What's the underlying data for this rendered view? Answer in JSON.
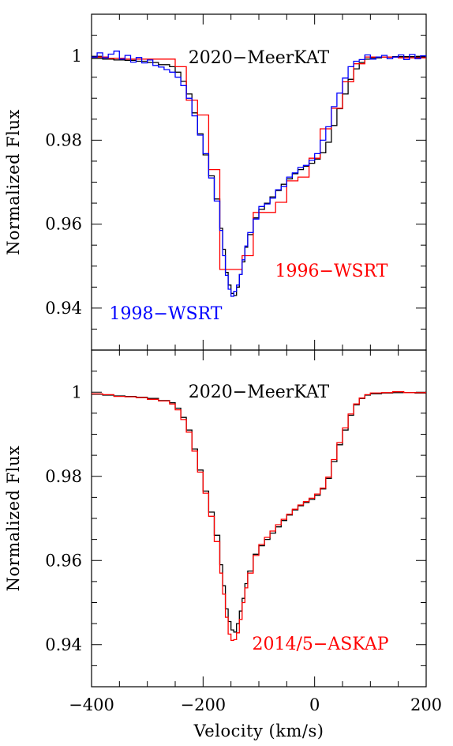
{
  "chart_data": [
    {
      "type": "line",
      "style": "step",
      "ylabel": "Normalized Flux",
      "xlabel": "",
      "xlim": [
        -400,
        200
      ],
      "ylim": [
        0.93,
        1.01
      ],
      "yticks": [
        "1",
        "0.98",
        "0.96",
        "0.94"
      ],
      "xticks": [],
      "annotations": [
        {
          "text": "2020−MeerKAT",
          "color": "#000000"
        },
        {
          "text": "1996−WSRT",
          "color": "#ff0000"
        },
        {
          "text": "1998−WSRT",
          "color": "#0000ff"
        }
      ],
      "series": [
        {
          "name": "2020−MeerKAT",
          "color": "#000000",
          "x": [
            -400,
            -380,
            -360,
            -340,
            -320,
            -300,
            -280,
            -260,
            -250,
            -240,
            -230,
            -220,
            -210,
            -200,
            -190,
            -180,
            -170,
            -165,
            -160,
            -155,
            -150,
            -145,
            -140,
            -135,
            -130,
            -125,
            -120,
            -110,
            -100,
            -90,
            -80,
            -70,
            -60,
            -50,
            -40,
            -30,
            -20,
            -10,
            0,
            10,
            20,
            30,
            40,
            50,
            60,
            70,
            80,
            90,
            100,
            120,
            140,
            160,
            180,
            200
          ],
          "y": [
            0.9995,
            0.9993,
            0.9991,
            0.999,
            0.9988,
            0.9985,
            0.998,
            0.9975,
            0.9962,
            0.994,
            0.991,
            0.9865,
            0.9815,
            0.9765,
            0.9715,
            0.966,
            0.959,
            0.954,
            0.9485,
            0.9455,
            0.9435,
            0.943,
            0.945,
            0.948,
            0.951,
            0.9545,
            0.9575,
            0.9615,
            0.9635,
            0.965,
            0.9665,
            0.968,
            0.9695,
            0.9708,
            0.972,
            0.973,
            0.9738,
            0.9745,
            0.9755,
            0.977,
            0.9795,
            0.9835,
            0.9875,
            0.991,
            0.9945,
            0.997,
            0.9985,
            0.9993,
            0.9996,
            0.9998,
            0.9999,
            0.9999,
            0.9998,
            0.9998
          ]
        },
        {
          "name": "1996−WSRT",
          "color": "#ff0000",
          "x": [
            -400,
            -370,
            -340,
            -310,
            -280,
            -250,
            -230,
            -210,
            -190,
            -170,
            -150,
            -130,
            -110,
            -90,
            -70,
            -50,
            -30,
            -10,
            10,
            30,
            50,
            70,
            90,
            110,
            130,
            150,
            170,
            200
          ],
          "y": [
            0.9998,
            0.9995,
            0.9993,
            0.9993,
            0.9993,
            0.9975,
            0.9895,
            0.986,
            0.973,
            0.9492,
            0.9492,
            0.9525,
            0.9628,
            0.9628,
            0.9652,
            0.9703,
            0.9712,
            0.9757,
            0.9827,
            0.9876,
            0.9939,
            0.9982,
            0.9998,
            0.9998,
            0.9998,
            0.9996,
            0.9996,
            0.9996
          ]
        },
        {
          "name": "1998−WSRT",
          "color": "#0000ff",
          "x": [
            -400,
            -390,
            -380,
            -370,
            -360,
            -350,
            -340,
            -330,
            -320,
            -310,
            -300,
            -290,
            -280,
            -270,
            -260,
            -250,
            -240,
            -230,
            -220,
            -210,
            -200,
            -190,
            -180,
            -170,
            -165,
            -160,
            -155,
            -150,
            -145,
            -140,
            -135,
            -130,
            -125,
            -120,
            -110,
            -100,
            -90,
            -80,
            -70,
            -60,
            -50,
            -40,
            -30,
            -20,
            -10,
            0,
            10,
            20,
            30,
            40,
            50,
            60,
            70,
            80,
            90,
            100,
            110,
            120,
            130,
            140,
            150,
            160,
            170,
            180,
            190,
            200
          ],
          "y": [
            0.9998,
            1.0008,
            0.9996,
            1.0005,
            1.0012,
            0.9993,
            1.0002,
            0.9986,
            0.9997,
            0.9984,
            0.9991,
            0.9978,
            0.9974,
            0.9968,
            0.9962,
            0.995,
            0.993,
            0.99,
            0.9858,
            0.9812,
            0.9768,
            0.971,
            0.9655,
            0.9585,
            0.9525,
            0.9478,
            0.9445,
            0.9428,
            0.944,
            0.9455,
            0.948,
            0.9515,
            0.9548,
            0.958,
            0.9612,
            0.9642,
            0.9648,
            0.9662,
            0.9682,
            0.969,
            0.9712,
            0.9722,
            0.9735,
            0.974,
            0.9752,
            0.9768,
            0.98,
            0.9832,
            0.988,
            0.9912,
            0.9948,
            0.9975,
            0.9988,
            0.9992,
            1.0003,
            0.9993,
            0.9998,
            1.0002,
            0.9994,
            0.9998,
            1.0003,
            0.9992,
            1.0004,
            0.9994,
            1.0001,
            0.9997
          ]
        }
      ]
    },
    {
      "type": "line",
      "style": "step",
      "ylabel": "Normalized Flux",
      "xlabel": "Velocity (km/s)",
      "xlim": [
        -400,
        200
      ],
      "ylim": [
        0.93,
        1.01
      ],
      "yticks": [
        "1",
        "0.98",
        "0.96",
        "0.94"
      ],
      "xticks": [
        "−400",
        "−200",
        "0",
        "200"
      ],
      "annotations": [
        {
          "text": "2020−MeerKAT",
          "color": "#000000"
        },
        {
          "text": "2014/5−ASKAP",
          "color": "#ff0000"
        }
      ],
      "series": [
        {
          "name": "2020−MeerKAT",
          "color": "#000000",
          "x": [
            -400,
            -380,
            -360,
            -340,
            -320,
            -300,
            -280,
            -260,
            -250,
            -240,
            -230,
            -220,
            -210,
            -200,
            -190,
            -180,
            -170,
            -165,
            -160,
            -155,
            -150,
            -145,
            -140,
            -135,
            -130,
            -125,
            -120,
            -110,
            -100,
            -90,
            -80,
            -70,
            -60,
            -50,
            -40,
            -30,
            -20,
            -10,
            0,
            10,
            20,
            30,
            40,
            50,
            60,
            70,
            80,
            90,
            100,
            120,
            140,
            160,
            180,
            200
          ],
          "y": [
            0.9995,
            0.9993,
            0.9991,
            0.999,
            0.9988,
            0.9985,
            0.998,
            0.9975,
            0.9962,
            0.994,
            0.991,
            0.9865,
            0.9815,
            0.9765,
            0.9715,
            0.966,
            0.959,
            0.954,
            0.9485,
            0.9455,
            0.9435,
            0.943,
            0.945,
            0.948,
            0.951,
            0.9545,
            0.9575,
            0.9615,
            0.9635,
            0.965,
            0.9665,
            0.968,
            0.9695,
            0.9708,
            0.972,
            0.973,
            0.9738,
            0.9745,
            0.9755,
            0.977,
            0.9795,
            0.9835,
            0.9875,
            0.991,
            0.9945,
            0.997,
            0.9985,
            0.9993,
            0.9996,
            0.9998,
            0.9999,
            0.9999,
            0.9998,
            0.9998
          ]
        },
        {
          "name": "2014/5−ASKAP",
          "color": "#ff0000",
          "x": [
            -400,
            -380,
            -360,
            -340,
            -320,
            -300,
            -280,
            -260,
            -250,
            -240,
            -230,
            -220,
            -210,
            -200,
            -190,
            -180,
            -170,
            -165,
            -160,
            -155,
            -150,
            -145,
            -140,
            -135,
            -130,
            -125,
            -120,
            -110,
            -100,
            -90,
            -80,
            -70,
            -60,
            -50,
            -40,
            -30,
            -20,
            -10,
            0,
            10,
            20,
            30,
            40,
            50,
            60,
            70,
            80,
            90,
            100,
            120,
            140,
            160,
            180,
            200
          ],
          "y": [
            0.9996,
            0.9994,
            0.999,
            0.9989,
            0.9987,
            0.9983,
            0.9979,
            0.9972,
            0.9958,
            0.9935,
            0.9905,
            0.986,
            0.981,
            0.976,
            0.9705,
            0.9645,
            0.957,
            0.952,
            0.9465,
            0.9425,
            0.941,
            0.9412,
            0.9428,
            0.946,
            0.95,
            0.9535,
            0.957,
            0.9612,
            0.9638,
            0.9655,
            0.967,
            0.9685,
            0.9698,
            0.971,
            0.9722,
            0.9732,
            0.974,
            0.9748,
            0.9758,
            0.9772,
            0.9798,
            0.984,
            0.988,
            0.9915,
            0.9948,
            0.9972,
            0.9986,
            0.9994,
            0.9998,
            0.9999,
            1.0001,
            0.9999,
            0.9999,
            0.9998
          ]
        }
      ]
    }
  ]
}
